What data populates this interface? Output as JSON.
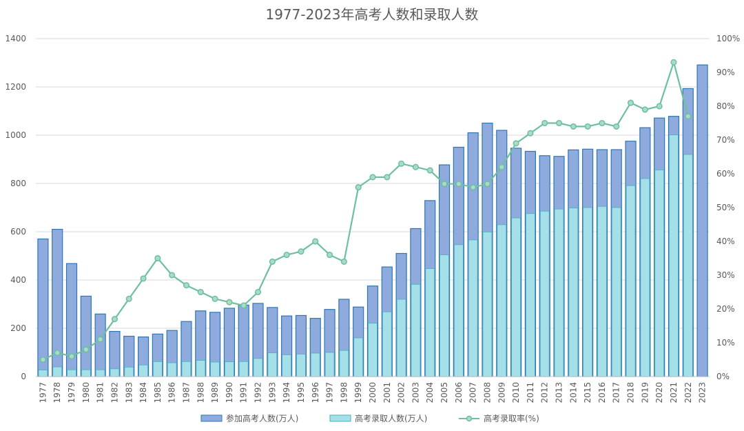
{
  "chart_data": {
    "type": "bar",
    "title": "1977-2023年高考人数和录取人数",
    "categories": [
      "1977",
      "1978",
      "1979",
      "1980",
      "1981",
      "1982",
      "1983",
      "1984",
      "1985",
      "1986",
      "1987",
      "1988",
      "1989",
      "1990",
      "1991",
      "1992",
      "1993",
      "1994",
      "1995",
      "1996",
      "1997",
      "1998",
      "1999",
      "2000",
      "2001",
      "2002",
      "2003",
      "2004",
      "2005",
      "2006",
      "2007",
      "2008",
      "2009",
      "2010",
      "2011",
      "2012",
      "2013",
      "2014",
      "2015",
      "2016",
      "2017",
      "2018",
      "2019",
      "2020",
      "2021",
      "2022",
      "2023"
    ],
    "y_left": {
      "ylim": [
        0,
        1400
      ],
      "ticks": [
        "0",
        "200",
        "400",
        "600",
        "800",
        "1000",
        "1200",
        "1400"
      ]
    },
    "y_right": {
      "ylim": [
        0,
        100
      ],
      "ticks": [
        "0%",
        "10%",
        "20%",
        "30%",
        "40%",
        "50%",
        "60%",
        "70%",
        "80%",
        "90%",
        "100%"
      ]
    },
    "series": [
      {
        "name": "参加高考人数(万人)",
        "type": "bar",
        "axis": "left",
        "color": "#8FAADC",
        "stroke": "#2E75B6",
        "values": [
          570,
          610,
          468,
          333,
          259,
          187,
          167,
          164,
          176,
          191,
          228,
          272,
          266,
          283,
          296,
          303,
          286,
          251,
          253,
          241,
          278,
          320,
          288,
          375,
          454,
          510,
          613,
          729,
          877,
          950,
          1010,
          1050,
          1020,
          946,
          933,
          915,
          912,
          939,
          942,
          940,
          940,
          975,
          1031,
          1071,
          1078,
          1193,
          1291
        ]
      },
      {
        "name": "高考录取人数(万人)",
        "type": "bar",
        "axis": "left",
        "color": "#A5E0E8",
        "stroke": "#4BAFC0",
        "values": [
          27,
          40,
          28,
          28,
          28,
          32,
          39,
          48,
          62,
          57,
          62,
          67,
          60,
          61,
          62,
          75,
          98,
          90,
          93,
          97,
          100,
          108,
          160,
          221,
          268,
          320,
          382,
          447,
          504,
          546,
          566,
          599,
          629,
          657,
          675,
          685,
          694,
          698,
          700,
          705,
          700,
          791,
          820,
          856,
          1001,
          920,
          null
        ]
      },
      {
        "name": "高考录取率(%)",
        "type": "line",
        "axis": "right",
        "color": "#6DBF9F",
        "values": [
          5,
          7,
          6,
          8,
          11,
          17,
          23,
          29,
          35,
          30,
          27,
          25,
          23,
          22,
          21,
          25,
          34,
          36,
          37,
          40,
          36,
          34,
          56,
          59,
          59,
          63,
          62,
          61,
          57,
          57,
          56,
          57,
          62,
          69,
          72,
          75,
          75,
          74,
          74,
          75,
          74,
          81,
          79,
          80,
          93,
          77,
          null
        ]
      }
    ],
    "legend_position": "bottom",
    "grid": true
  }
}
